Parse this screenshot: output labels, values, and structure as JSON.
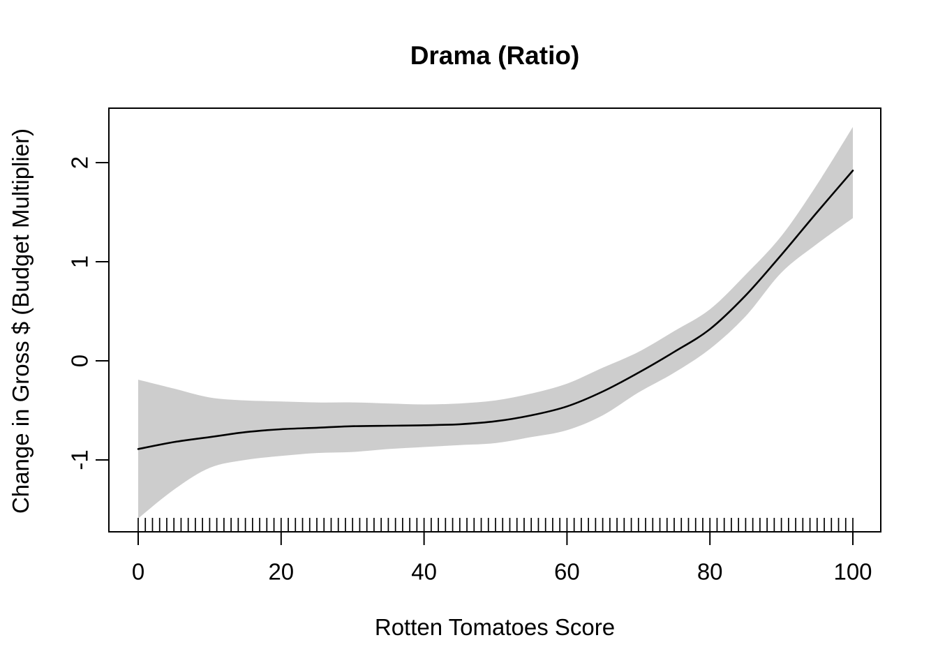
{
  "figure": {
    "background": "#ffffff",
    "text_color": "#000000"
  },
  "chart_data": {
    "type": "line",
    "title": "Drama (Ratio)",
    "xlabel": "Rotten Tomatoes Score",
    "ylabel": "Change in Gross $ (Budget Multiplier)",
    "xlim": [
      -4.1,
      103.9
    ],
    "ylim": [
      -1.73,
      2.55
    ],
    "x_ticks": [
      0,
      20,
      40,
      60,
      80,
      100
    ],
    "y_ticks": [
      -1,
      0,
      1,
      2
    ],
    "grid": false,
    "legend_position": "none",
    "line_color": "#000000",
    "band_color": "#cdcdcd",
    "box_color": "#000000",
    "x": [
      0,
      5,
      10,
      15,
      20,
      25,
      30,
      35,
      40,
      45,
      50,
      55,
      60,
      65,
      70,
      75,
      80,
      85,
      90,
      95,
      100
    ],
    "series": [
      {
        "name": "smooth_fit",
        "values": [
          -0.89,
          -0.82,
          -0.77,
          -0.72,
          -0.69,
          -0.675,
          -0.66,
          -0.655,
          -0.65,
          -0.64,
          -0.61,
          -0.55,
          -0.46,
          -0.31,
          -0.12,
          0.09,
          0.32,
          0.66,
          1.07,
          1.5,
          1.92
        ]
      }
    ],
    "confidence_band": {
      "name": "confidence_band",
      "upper": [
        -0.19,
        -0.28,
        -0.37,
        -0.4,
        -0.41,
        -0.42,
        -0.42,
        -0.43,
        -0.44,
        -0.43,
        -0.4,
        -0.33,
        -0.23,
        -0.07,
        0.09,
        0.3,
        0.52,
        0.87,
        1.26,
        1.78,
        2.36
      ],
      "lower": [
        -1.59,
        -1.3,
        -1.08,
        -1.0,
        -0.96,
        -0.93,
        -0.92,
        -0.89,
        -0.87,
        -0.85,
        -0.83,
        -0.77,
        -0.7,
        -0.55,
        -0.32,
        -0.12,
        0.12,
        0.45,
        0.89,
        1.18,
        1.44
      ]
    },
    "rug_scores": [
      0,
      1,
      2,
      3,
      4,
      5,
      6,
      7,
      8,
      9,
      10,
      11,
      12,
      13,
      14,
      15,
      16,
      17,
      18,
      19,
      20,
      21,
      22,
      23,
      24,
      25,
      26,
      27,
      28,
      29,
      30,
      31,
      32,
      33,
      34,
      35,
      36,
      37,
      38,
      39,
      40,
      41,
      42,
      43,
      44,
      45,
      46,
      47,
      48,
      49,
      50,
      51,
      52,
      53,
      54,
      55,
      56,
      57,
      58,
      59,
      60,
      61,
      62,
      63,
      64,
      65,
      66,
      67,
      68,
      69,
      70,
      71,
      72,
      73,
      74,
      75,
      76,
      77,
      78,
      79,
      80,
      81,
      82,
      83,
      84,
      85,
      86,
      87,
      88,
      89,
      90,
      91,
      92,
      93,
      94,
      95,
      96,
      97,
      98,
      99,
      100
    ]
  }
}
